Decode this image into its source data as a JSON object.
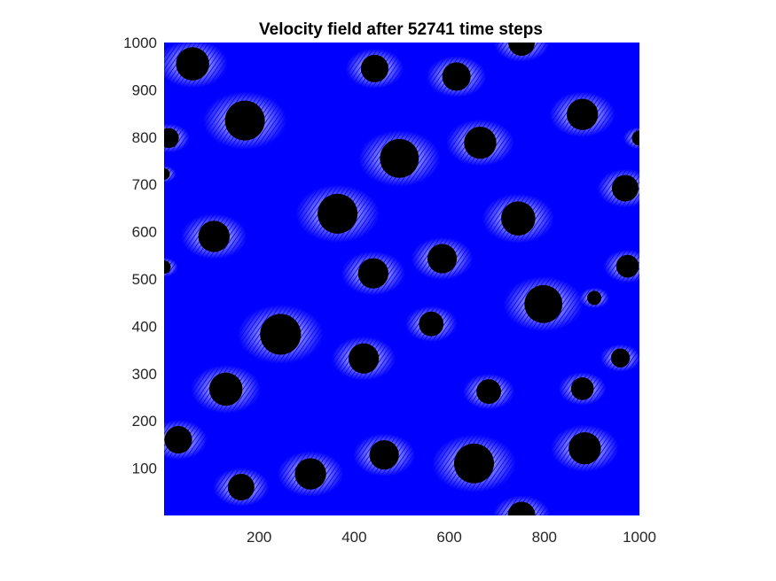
{
  "chart_data": {
    "type": "scatter",
    "title": "Velocity field after 52741 time steps",
    "xlabel": "",
    "ylabel": "",
    "xlim": [
      0,
      1000
    ],
    "ylim": [
      0,
      1000
    ],
    "x_ticks": [
      200,
      400,
      600,
      800,
      1000
    ],
    "y_ticks": [
      100,
      200,
      300,
      400,
      500,
      600,
      700,
      800,
      900,
      1000
    ],
    "grid": false,
    "legend": "none",
    "field_color": "#0000ff",
    "obstacle_color": "#000000",
    "obstacles": [
      {
        "x": 60,
        "y": 955,
        "r": 35
      },
      {
        "x": 443,
        "y": 945,
        "r": 29
      },
      {
        "x": 615,
        "y": 928,
        "r": 30
      },
      {
        "x": 752,
        "y": 1000,
        "r": 28
      },
      {
        "x": 170,
        "y": 835,
        "r": 42
      },
      {
        "x": 10,
        "y": 798,
        "r": 21
      },
      {
        "x": 495,
        "y": 755,
        "r": 41
      },
      {
        "x": 665,
        "y": 788,
        "r": 34
      },
      {
        "x": 880,
        "y": 848,
        "r": 33
      },
      {
        "x": 1000,
        "y": 798,
        "r": 16
      },
      {
        "x": 970,
        "y": 692,
        "r": 28
      },
      {
        "x": 0,
        "y": 722,
        "r": 12
      },
      {
        "x": 365,
        "y": 638,
        "r": 42
      },
      {
        "x": 745,
        "y": 628,
        "r": 36
      },
      {
        "x": 105,
        "y": 590,
        "r": 33
      },
      {
        "x": 585,
        "y": 543,
        "r": 31
      },
      {
        "x": 440,
        "y": 512,
        "r": 32
      },
      {
        "x": 975,
        "y": 527,
        "r": 24
      },
      {
        "x": 0,
        "y": 525,
        "r": 14
      },
      {
        "x": 798,
        "y": 447,
        "r": 40
      },
      {
        "x": 905,
        "y": 460,
        "r": 15
      },
      {
        "x": 562,
        "y": 405,
        "r": 26
      },
      {
        "x": 245,
        "y": 383,
        "r": 43
      },
      {
        "x": 420,
        "y": 332,
        "r": 32
      },
      {
        "x": 960,
        "y": 333,
        "r": 20
      },
      {
        "x": 130,
        "y": 267,
        "r": 35
      },
      {
        "x": 683,
        "y": 262,
        "r": 26
      },
      {
        "x": 880,
        "y": 268,
        "r": 24
      },
      {
        "x": 30,
        "y": 160,
        "r": 29
      },
      {
        "x": 885,
        "y": 142,
        "r": 34
      },
      {
        "x": 463,
        "y": 128,
        "r": 31
      },
      {
        "x": 652,
        "y": 110,
        "r": 42
      },
      {
        "x": 308,
        "y": 88,
        "r": 33
      },
      {
        "x": 162,
        "y": 60,
        "r": 28
      },
      {
        "x": 752,
        "y": 0,
        "r": 29
      }
    ]
  }
}
